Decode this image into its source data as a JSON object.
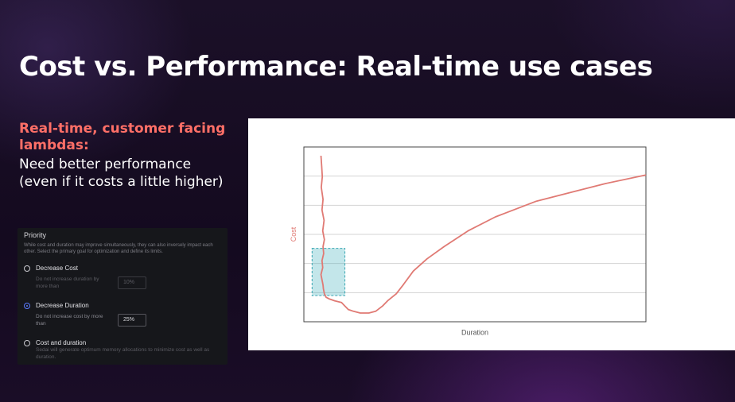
{
  "slide": {
    "title": "Cost vs. Performance: Real-time use cases",
    "accent_text": "Real-time, customer facing lambdas:",
    "body_text": "Need better performance (even if it costs a little higher)"
  },
  "priority_panel": {
    "title": "Priority",
    "description": "While cost and duration may improve simultaneously, they can also inversely impact each other. Select the primary goal for optimization and define its limits.",
    "options": [
      {
        "label": "Decrease Cost",
        "sublabel": "Do not increase duration by more than",
        "value": "10%",
        "selected": false
      },
      {
        "label": "Decrease Duration",
        "sublabel": "Do not increase cost by more than",
        "value": "25%",
        "selected": true
      },
      {
        "label": "Cost and duration",
        "sublabel": "Sedai will generate optimum memory allocations to minimize cost as well as duration.",
        "selected": false
      }
    ]
  },
  "chart_data": {
    "type": "line",
    "title": "",
    "xlabel": "Duration",
    "ylabel": "Cost",
    "grid": true,
    "xlim": [
      0,
      100
    ],
    "ylim": [
      0,
      100
    ],
    "series": [
      {
        "color": "#e07a74",
        "x": [
          5.0,
          5.2,
          5.4,
          5.1,
          5.6,
          5.3,
          5.9,
          5.5,
          6.0,
          5.6,
          5.8,
          5.3,
          5.5,
          5.0,
          5.3,
          5.6,
          5.7,
          6.0,
          6.5,
          7.5,
          9.0,
          11.0,
          12.0,
          13.0,
          14.5,
          16.5,
          19.0,
          21.0,
          23.0,
          24.5,
          27.0,
          29.0,
          32.0,
          36.0,
          41.0,
          48.0,
          56.0,
          68.0,
          80.0,
          88.0,
          100.0
        ],
        "y": [
          95,
          89,
          83,
          77,
          70,
          64,
          58,
          52,
          47,
          43,
          39,
          35,
          31,
          27,
          24,
          21,
          19,
          16,
          14,
          13,
          12,
          11,
          9,
          7,
          6,
          5,
          5,
          6,
          9,
          12,
          16,
          21,
          29,
          36,
          43,
          52,
          60,
          69,
          75,
          79,
          84
        ]
      }
    ],
    "highlight": {
      "color": "#52b8c3",
      "x": [
        2.4,
        12.0
      ],
      "y": [
        15,
        42
      ]
    }
  }
}
